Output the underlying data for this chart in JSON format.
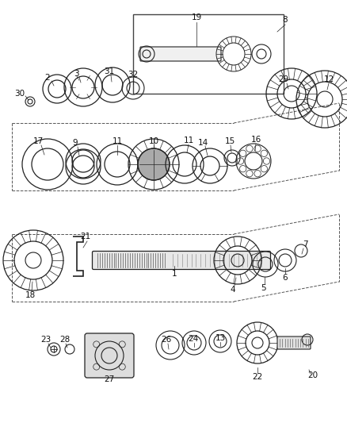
{
  "bg_color": "#ffffff",
  "line_color": "#222222",
  "label_color": "#111111",
  "fig_width": 4.38,
  "fig_height": 5.33,
  "dpi": 100
}
